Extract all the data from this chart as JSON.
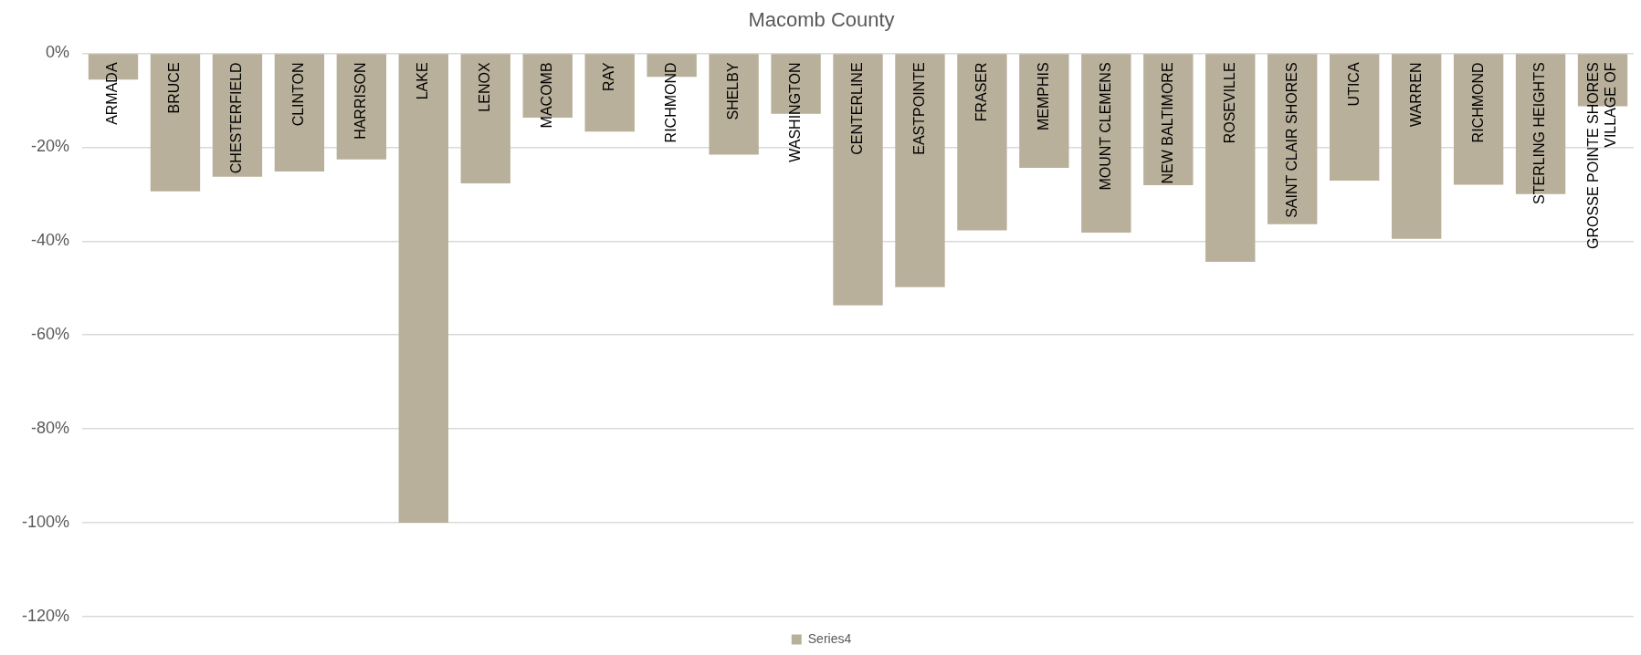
{
  "chart_data": {
    "type": "bar",
    "title": "Macomb County",
    "categories": [
      "ARMADA",
      "BRUCE",
      "CHESTERFIELD",
      "CLINTON",
      "HARRISON",
      "LAKE",
      "LENOX",
      "MACOMB",
      "RAY",
      "RICHMOND",
      "SHELBY",
      "WASHINGTON",
      "CENTERLINE",
      "EASTPOINTE",
      "FRASER",
      "MEMPHIS",
      "MOUNT CLEMENS",
      "NEW BALTIMORE",
      "ROSEVILLE",
      "SAINT CLAIR SHORES",
      "UTICA",
      "WARREN",
      "RICHMOND",
      "STERLING HEIGHTS",
      "GROSSE POINTE SHORES VILLAGE OF"
    ],
    "series": [
      {
        "name": "Series4",
        "color": "#b9b09b",
        "values": [
          -5.6,
          -29.4,
          -26.3,
          -25.2,
          -22.6,
          -100,
          -27.7,
          -13.7,
          -16.7,
          -5.0,
          -21.6,
          -12.9,
          -53.7,
          -49.8,
          -37.7,
          -24.4,
          -38.2,
          -28.1,
          -44.4,
          -36.4,
          -27.1,
          -39.5,
          -28.0,
          -30.0,
          -11.3
        ]
      }
    ],
    "ylim": [
      -120,
      0
    ],
    "yticks": [
      {
        "value": 0,
        "label": "0%"
      },
      {
        "value": -20,
        "label": "-20%"
      },
      {
        "value": -40,
        "label": "-40%"
      },
      {
        "value": -60,
        "label": "-60%"
      },
      {
        "value": -80,
        "label": "-80%"
      },
      {
        "value": -100,
        "label": "-100%"
      },
      {
        "value": -120,
        "label": "-120%"
      }
    ],
    "grid": "y",
    "legend": "bottom"
  }
}
